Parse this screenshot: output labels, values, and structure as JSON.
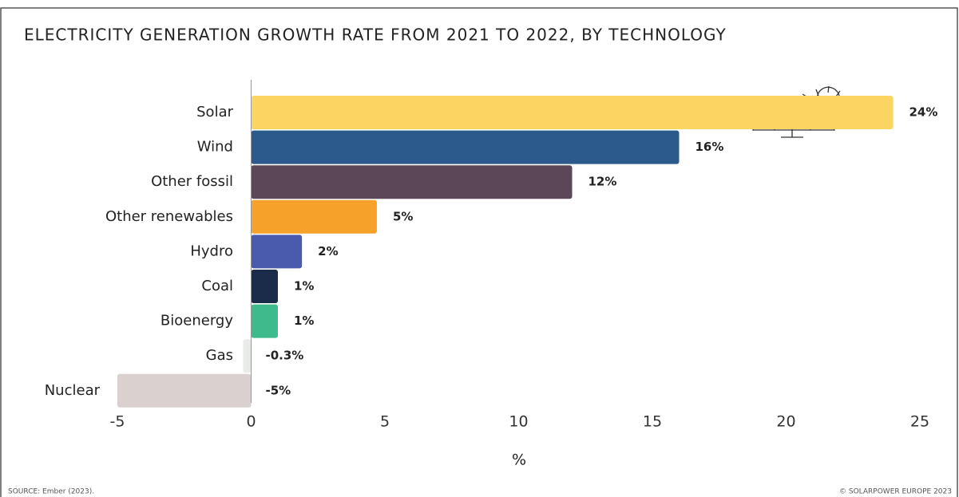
{
  "chart_data": {
    "type": "hbar",
    "title": "ELECTRICITY GENERATION GROWTH RATE FROM 2021 TO 2022, BY TECHNOLOGY",
    "xlabel": "%",
    "source": "SOURCE: Ember (2023).",
    "copyright": "© SOLARPOWER EUROPE 2023",
    "categories": [
      "Solar",
      "Wind",
      "Other fossil",
      "Other renewables",
      "Hydro",
      "Coal",
      "Bioenergy",
      "Gas",
      "Nuclear"
    ],
    "values": [
      24,
      16,
      12,
      4.7,
      1.9,
      1,
      1,
      -0.3,
      -5
    ],
    "value_labels": [
      "24%",
      "16%",
      "12%",
      "5%",
      "2%",
      "1%",
      "1%",
      "-0.3%",
      "-5%"
    ],
    "colors": [
      "#fcd462",
      "#2c5a8c",
      "#5c4759",
      "#f5a12a",
      "#4a5aad",
      "#1b2b4a",
      "#3dbb8c",
      "#e8ebe8",
      "#d9d0cf"
    ],
    "xlim": [
      -5,
      25
    ],
    "xticks": [
      -5,
      0,
      5,
      10,
      15,
      20,
      25
    ]
  }
}
